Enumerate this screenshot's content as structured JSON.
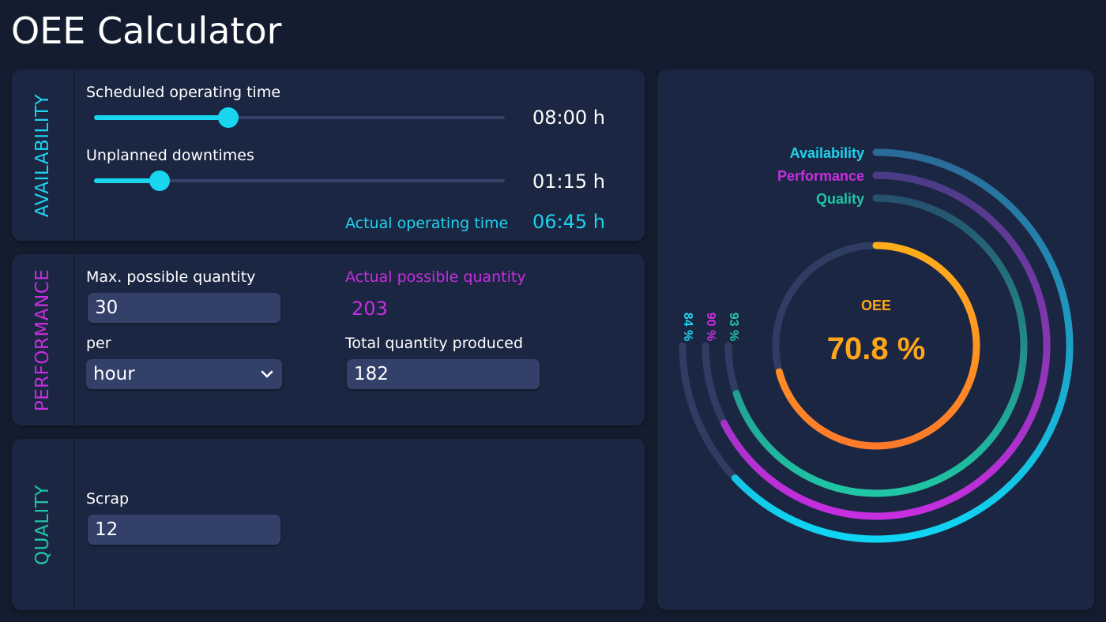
{
  "app": {
    "title": "OEE Calculator"
  },
  "colors": {
    "availability": "#1ed2ef",
    "performance": "#c72ee0",
    "quality": "#1fc6a4",
    "oee": "#ffa51a"
  },
  "availability": {
    "section_label": "AVAILABILITY",
    "scheduled": {
      "label": "Scheduled operating time",
      "value": "08:00 h"
    },
    "downtimes": {
      "label": "Unplanned downtimes",
      "value": "01:15 h"
    },
    "actual": {
      "label": "Actual operating time",
      "value": "06:45 h"
    }
  },
  "performance": {
    "section_label": "PERFORMANCE",
    "max_quantity": {
      "label": "Max. possible quantity",
      "value": "30"
    },
    "per": {
      "label": "per",
      "value": "hour"
    },
    "actual_possible": {
      "label": "Actual possible quantity",
      "value": "203"
    },
    "total_produced": {
      "label": "Total quantity produced",
      "value": "182"
    }
  },
  "quality": {
    "section_label": "QUALITY",
    "scrap": {
      "label": "Scrap",
      "value": "12"
    }
  },
  "chart_data": {
    "type": "radial-bar",
    "center_label": "OEE",
    "center_value": "70.8 %",
    "oee_fraction": 0.708,
    "series": [
      {
        "name": "Availability",
        "value_label": "84 %",
        "fraction": 0.84
      },
      {
        "name": "Performance",
        "value_label": "90 %",
        "fraction": 0.9
      },
      {
        "name": "Quality",
        "value_label": "93 %",
        "fraction": 0.93
      }
    ]
  }
}
